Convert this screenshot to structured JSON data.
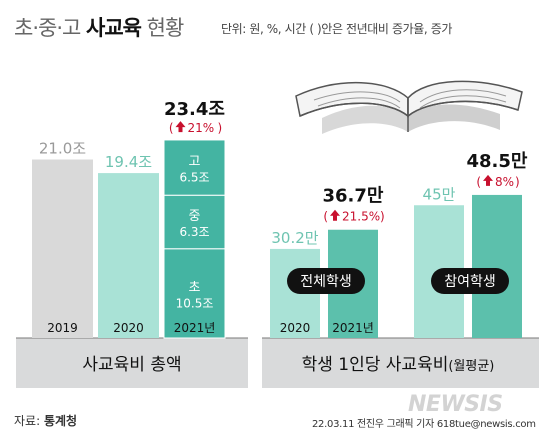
{
  "header": {
    "title_part1": "초·중·고 ",
    "title_part2": "사교육",
    "title_part3": " 현황",
    "note": "단위: 원, %, 시간 ( )안은 전년대비 증가율, 증가"
  },
  "chart_data": [
    {
      "type": "bar",
      "title": "사교육비 총액",
      "categories": [
        "2019",
        "2020",
        "2021년"
      ],
      "values": [
        21.0,
        19.4,
        23.4
      ],
      "value_labels": [
        "21.0조",
        "19.4조",
        "23.4조"
      ],
      "change_label": "21%",
      "stack_2021": [
        {
          "name": "초",
          "value": 10.5,
          "label": "10.5조"
        },
        {
          "name": "중",
          "value": 6.3,
          "label": "6.3조"
        },
        {
          "name": "고",
          "value": 6.5,
          "label": "6.5조"
        }
      ],
      "colors": [
        "#d9d9d9",
        "#a9e2d6",
        "#44b4a2"
      ]
    },
    {
      "type": "bar",
      "title": "학생 1인당 사교육비",
      "title_suffix": "(월평균)",
      "categories": [
        "2020",
        "2021년"
      ],
      "groups": [
        {
          "name": "전체학생",
          "values": [
            30.2,
            36.7
          ],
          "value_labels": [
            "30.2만",
            "36.7만"
          ],
          "change_label": "21.5%"
        },
        {
          "name": "참여학생",
          "values": [
            45.0,
            48.5
          ],
          "value_labels": [
            "45만",
            "48.5만"
          ],
          "change_label": "8%"
        }
      ],
      "colors": [
        "#a9e2d6",
        "#5cc0ac"
      ]
    }
  ],
  "footer": {
    "source_label": "자료: ",
    "source_name": "통계청",
    "credit": "22.03.11 전진우 그래픽 기자 618tue@newsis.com",
    "watermark": "NEWSIS"
  }
}
